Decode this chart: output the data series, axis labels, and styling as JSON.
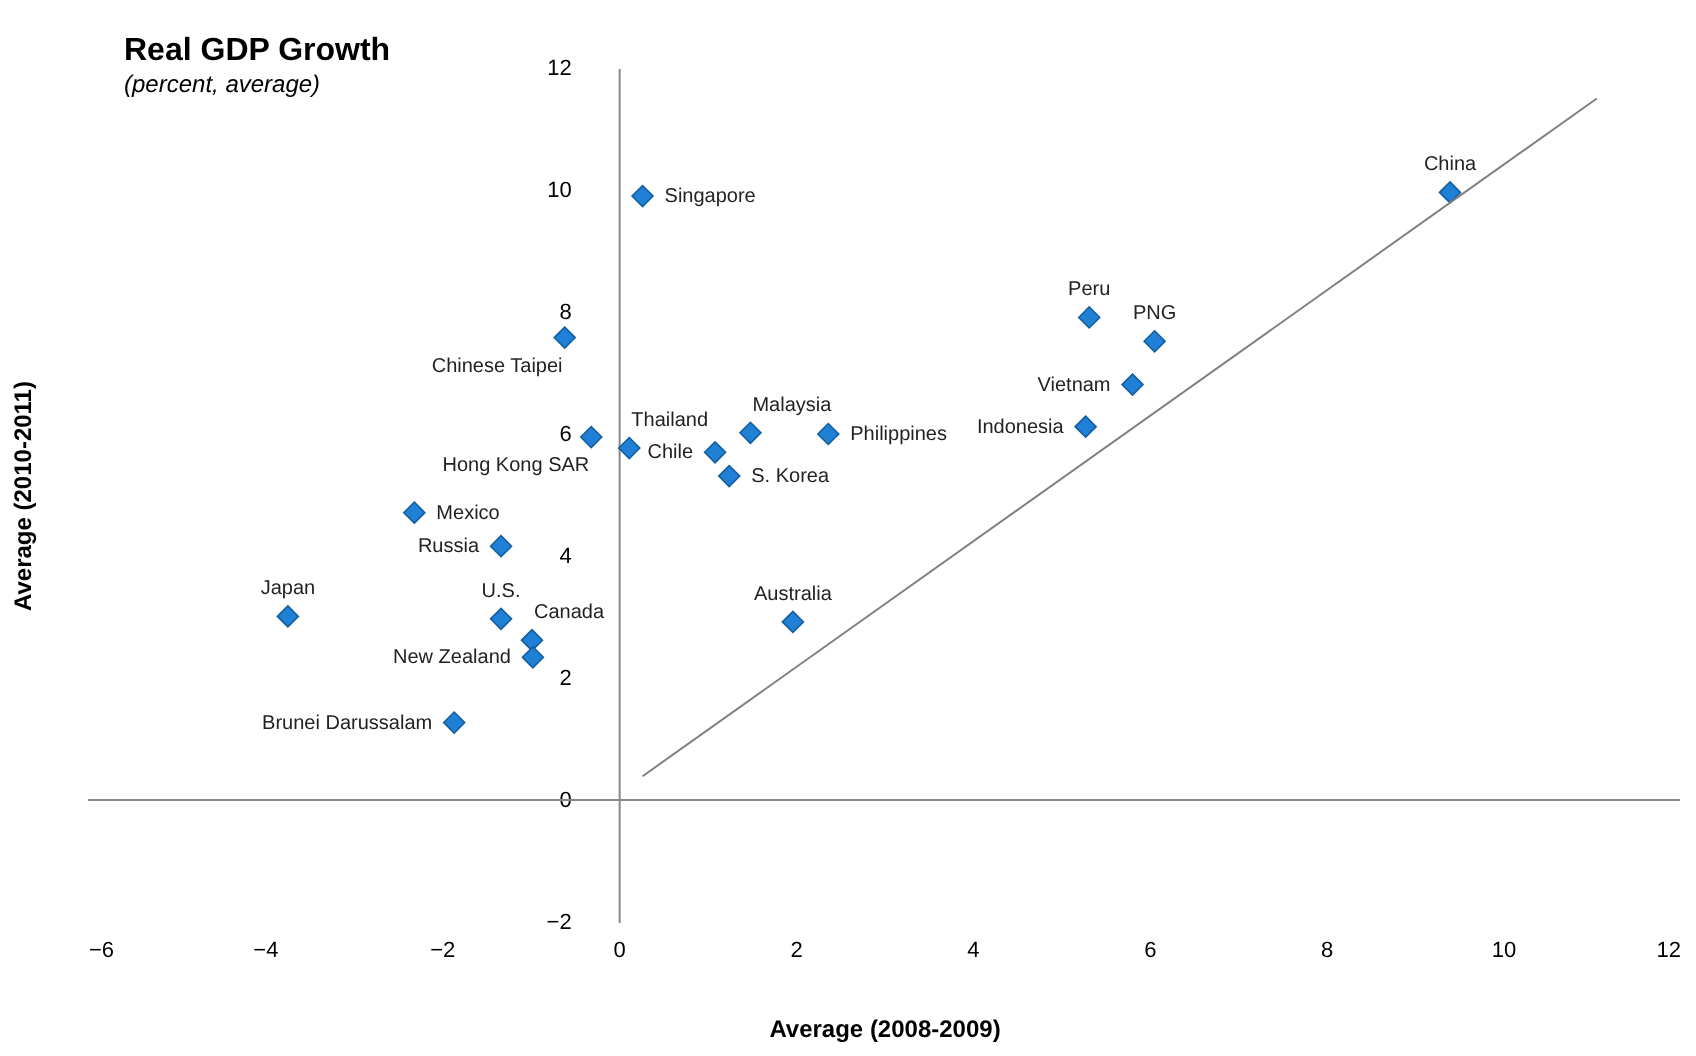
{
  "chart_data": {
    "type": "scatter",
    "title": "Real GDP Growth",
    "subtitle": "(percent, average)",
    "xlabel": "Average (2008-2009)",
    "ylabel": "Average (2010-2011)",
    "xlim": [
      -6,
      12
    ],
    "xticks": [
      -6,
      -4,
      -2,
      0,
      2,
      4,
      6,
      8,
      10,
      12
    ],
    "ylim": [
      -2,
      12
    ],
    "yticks": [
      -2,
      0,
      2,
      4,
      6,
      8,
      10,
      12
    ],
    "grid": false,
    "marker": "diamond",
    "ref_lines": [
      {
        "axis": "y",
        "value": 0,
        "color": "#888888"
      }
    ],
    "series": [
      {
        "color": "#1f80d6",
        "x": [
          0.27,
          9.4,
          -0.61,
          5.32,
          6.06,
          5.81,
          5.28,
          -0.31,
          0.12,
          1.09,
          1.49,
          2.37,
          1.25,
          -2.31,
          -1.33,
          -3.74,
          -1.33,
          -0.98,
          -0.97,
          -1.86,
          1.97
        ],
        "values": [
          9.9,
          9.96,
          7.58,
          7.91,
          7.52,
          6.81,
          6.12,
          5.95,
          5.77,
          5.7,
          6.02,
          6.0,
          5.31,
          4.71,
          4.16,
          3.01,
          2.97,
          2.62,
          2.34,
          1.27,
          2.92
        ]
      },
      {
        "type": "line",
        "marker": "none",
        "color": "#808080",
        "x": [
          0.27,
          11.06
        ],
        "values": [
          0.39,
          11.5
        ]
      }
    ],
    "annotations": [
      {
        "text": "Singapore",
        "x": 0.27,
        "y": 9.9
      },
      {
        "text": "China",
        "x": 9.4,
        "y": 9.96
      },
      {
        "text": "Chinese Taipei",
        "x": -0.61,
        "y": 7.58
      },
      {
        "text": "Peru",
        "x": 5.32,
        "y": 7.91
      },
      {
        "text": "PNG",
        "x": 6.06,
        "y": 7.52
      },
      {
        "text": "Vietnam",
        "x": 5.81,
        "y": 6.81
      },
      {
        "text": "Indonesia",
        "x": 5.28,
        "y": 6.12
      },
      {
        "text": "Hong Kong SAR",
        "x": -0.31,
        "y": 5.95
      },
      {
        "text": "Thailand",
        "x": 0.12,
        "y": 5.77
      },
      {
        "text": "Chile",
        "x": 1.09,
        "y": 5.7
      },
      {
        "text": "Malaysia",
        "x": 1.49,
        "y": 6.02
      },
      {
        "text": "Philippines",
        "x": 2.37,
        "y": 6.0
      },
      {
        "text": "S. Korea",
        "x": 1.25,
        "y": 5.31
      },
      {
        "text": "Mexico",
        "x": -2.31,
        "y": 4.71
      },
      {
        "text": "Russia",
        "x": -1.33,
        "y": 4.16
      },
      {
        "text": "Japan",
        "x": -3.74,
        "y": 3.01
      },
      {
        "text": "U.S.",
        "x": -1.33,
        "y": 2.97
      },
      {
        "text": "Canada",
        "x": -0.98,
        "y": 2.62
      },
      {
        "text": "New Zealand",
        "x": -0.97,
        "y": 2.34
      },
      {
        "text": "Brunei Darussalam",
        "x": -1.86,
        "y": 1.27
      },
      {
        "text": "Australia",
        "x": 1.97,
        "y": 2.92
      }
    ]
  }
}
